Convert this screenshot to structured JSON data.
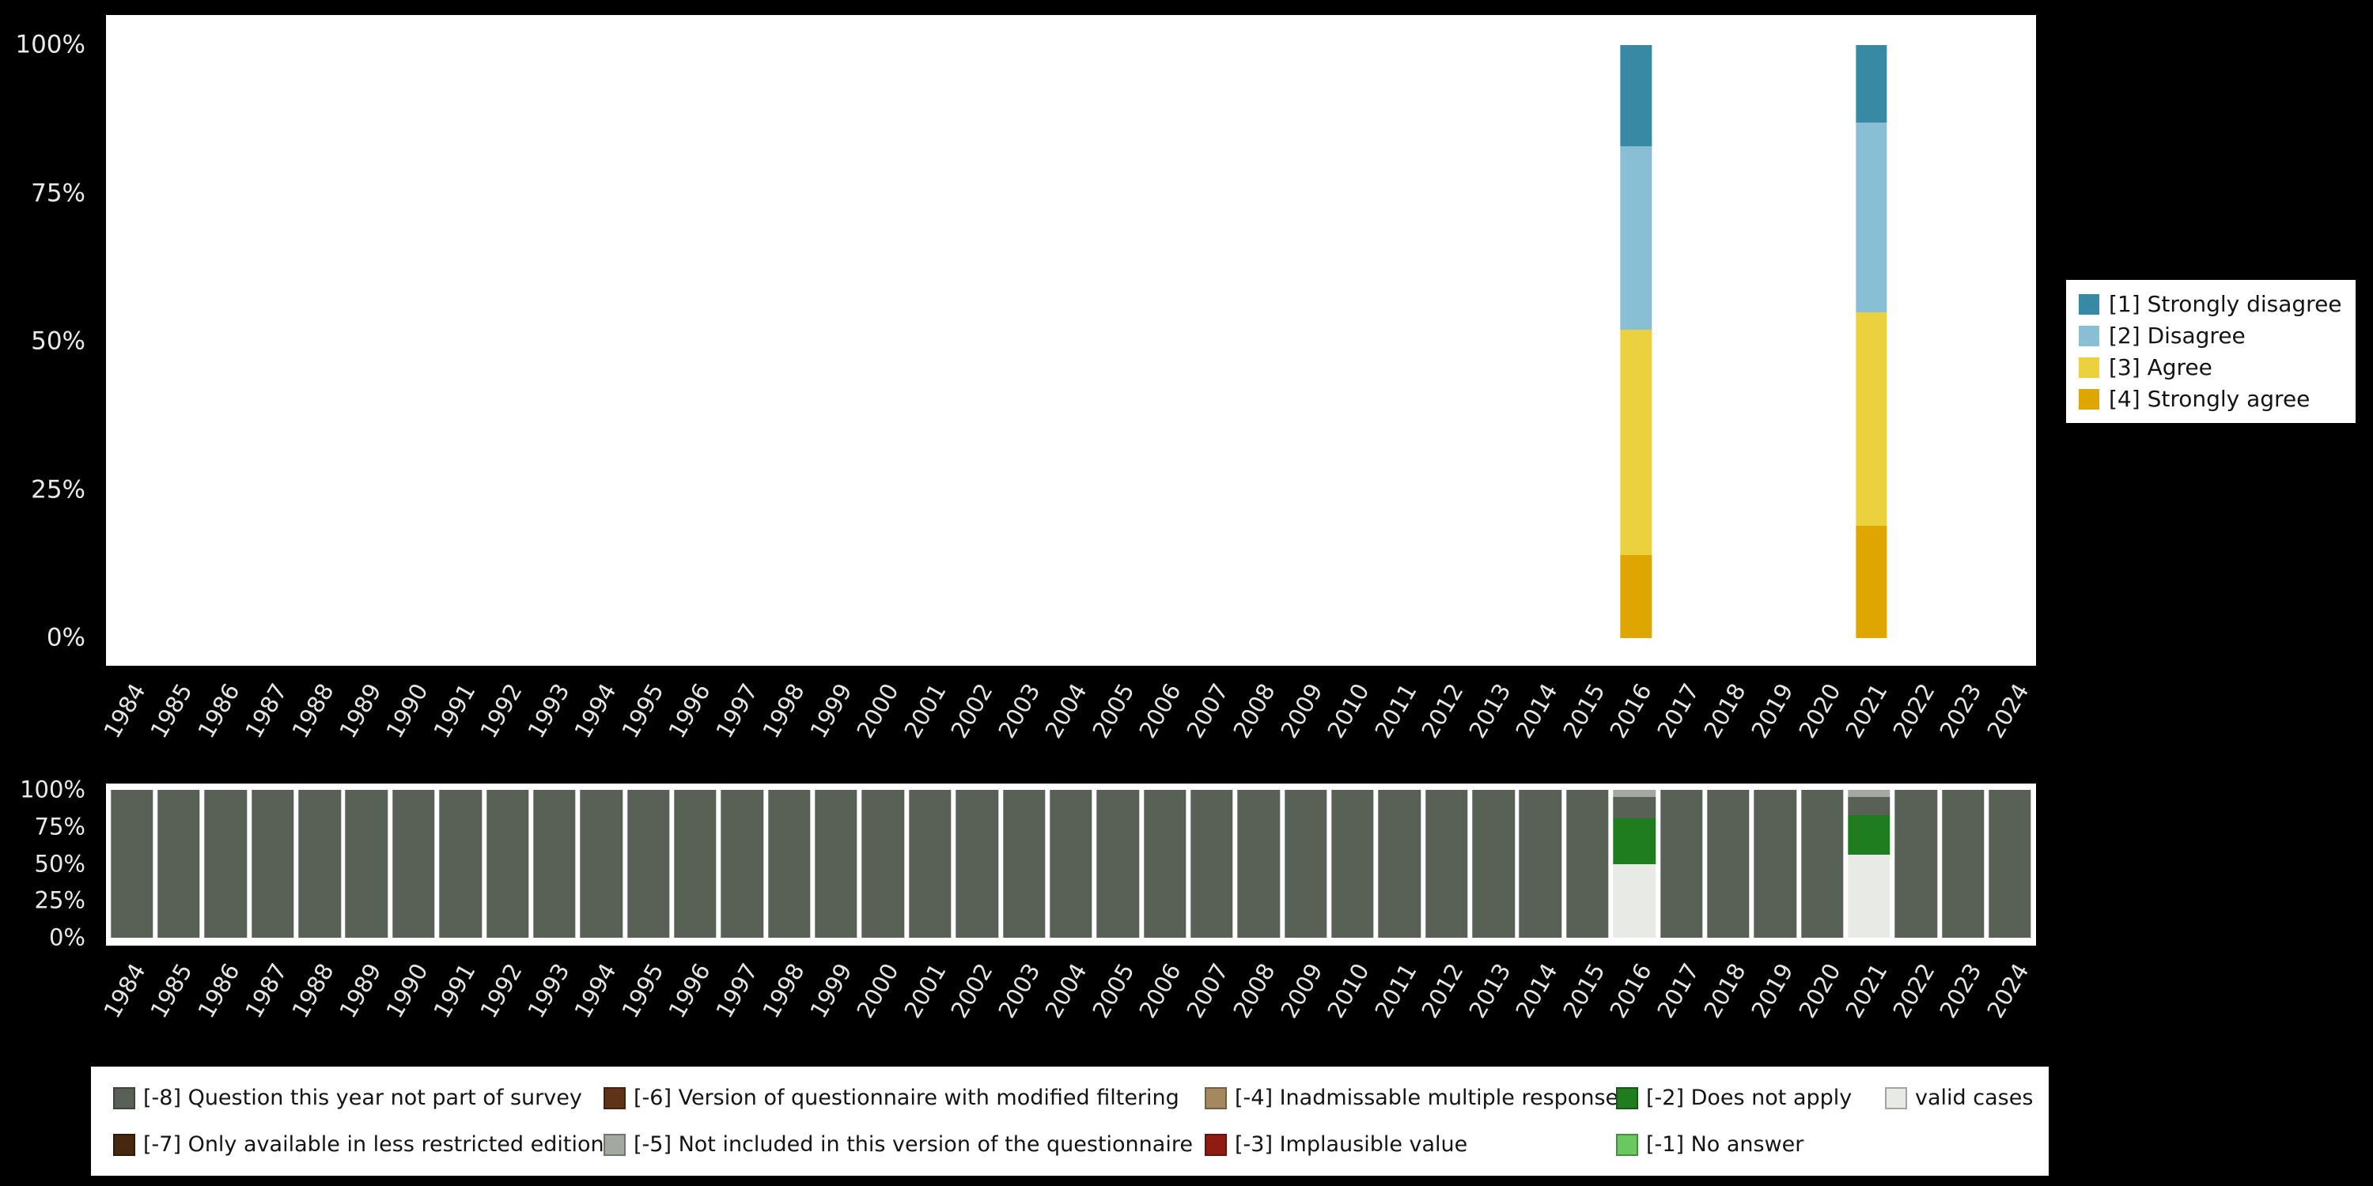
{
  "figure": {
    "background": "#000000",
    "panel_background": "#ffffff",
    "axis_text_color": "#e5e5e5"
  },
  "palette": {
    "1": "#3789a4",
    "2": "#88bfd4",
    "3": "#ecd13e",
    "4": "#dfa602",
    "-1": "#6ac861",
    "-2": "#1f7d1f",
    "-3": "#8e1c10",
    "-4": "#a5885d",
    "-5": "#a3a9a1",
    "-6": "#5f3317",
    "-7": "#45280e",
    "-8": "#596056",
    "valid": "#e8ebe5"
  },
  "y_ticks": [
    "0%",
    "25%",
    "50%",
    "75%",
    "100%"
  ],
  "chart_data": [
    {
      "type": "bar",
      "stacked": true,
      "title": "",
      "xlabel": "",
      "ylabel": "",
      "ylim": [
        0,
        100
      ],
      "unit": "percent",
      "grid": false,
      "legend_position": "right",
      "categories": [
        "1984",
        "1985",
        "1986",
        "1987",
        "1988",
        "1989",
        "1990",
        "1991",
        "1992",
        "1993",
        "1994",
        "1995",
        "1996",
        "1997",
        "1998",
        "1999",
        "2000",
        "2001",
        "2002",
        "2003",
        "2004",
        "2005",
        "2006",
        "2007",
        "2008",
        "2009",
        "2010",
        "2011",
        "2012",
        "2013",
        "2014",
        "2015",
        "2016",
        "2017",
        "2018",
        "2019",
        "2020",
        "2021",
        "2022",
        "2023",
        "2024"
      ],
      "series": [
        {
          "key": "4",
          "name": "[4] Strongly agree",
          "color": "#dfa602",
          "values_by_year": {
            "2016": 14,
            "2021": 19
          }
        },
        {
          "key": "3",
          "name": "[3] Agree",
          "color": "#ecd13e",
          "values_by_year": {
            "2016": 38,
            "2021": 36
          }
        },
        {
          "key": "2",
          "name": "[2] Disagree",
          "color": "#88bfd4",
          "values_by_year": {
            "2016": 31,
            "2021": 32
          }
        },
        {
          "key": "1",
          "name": "[1] Strongly disagree",
          "color": "#3789a4",
          "values_by_year": {
            "2016": 17,
            "2021": 13
          }
        }
      ],
      "year_stacks": {
        "2016": [
          {
            "key": "4",
            "pct": 14
          },
          {
            "key": "3",
            "pct": 38
          },
          {
            "key": "2",
            "pct": 31
          },
          {
            "key": "1",
            "pct": 17
          }
        ],
        "2021": [
          {
            "key": "4",
            "pct": 19
          },
          {
            "key": "3",
            "pct": 36
          },
          {
            "key": "2",
            "pct": 32
          },
          {
            "key": "1",
            "pct": 13
          }
        ]
      },
      "default_stack": []
    },
    {
      "type": "bar",
      "stacked": true,
      "title": "",
      "xlabel": "",
      "ylabel": "",
      "ylim": [
        0,
        100
      ],
      "unit": "percent",
      "grid": false,
      "legend_position": "bottom",
      "categories": [
        "1984",
        "1985",
        "1986",
        "1987",
        "1988",
        "1989",
        "1990",
        "1991",
        "1992",
        "1993",
        "1994",
        "1995",
        "1996",
        "1997",
        "1998",
        "1999",
        "2000",
        "2001",
        "2002",
        "2003",
        "2004",
        "2005",
        "2006",
        "2007",
        "2008",
        "2009",
        "2010",
        "2011",
        "2012",
        "2013",
        "2014",
        "2015",
        "2016",
        "2017",
        "2018",
        "2019",
        "2020",
        "2021",
        "2022",
        "2023",
        "2024"
      ],
      "series": [
        {
          "key": "valid",
          "name": "valid cases",
          "color": "#e8ebe5",
          "values_by_year": {
            "2016": 50,
            "2021": 56
          }
        },
        {
          "key": "-2",
          "name": "[-2] Does not apply",
          "color": "#1f7d1f",
          "values_by_year": {
            "2016": 31,
            "2021": 27
          }
        },
        {
          "key": "-8",
          "name": "[-8] Question this year not part of survey",
          "color": "#596056",
          "values_by_year": {
            "2016": 14,
            "2021": 12
          },
          "default_pct_other_years": 100
        },
        {
          "key": "-5",
          "name": "[-5] Not included in this version of the questionnaire",
          "color": "#a3a9a1",
          "values_by_year": {
            "2016": 5,
            "2021": 5
          }
        }
      ],
      "year_stacks": {
        "2016": [
          {
            "key": "valid",
            "pct": 50
          },
          {
            "key": "-2",
            "pct": 31
          },
          {
            "key": "-8",
            "pct": 14
          },
          {
            "key": "-5",
            "pct": 5
          }
        ],
        "2021": [
          {
            "key": "valid",
            "pct": 56
          },
          {
            "key": "-2",
            "pct": 27
          },
          {
            "key": "-8",
            "pct": 12
          },
          {
            "key": "-5",
            "pct": 5
          }
        ]
      },
      "default_stack": [
        {
          "key": "-8",
          "pct": 100
        }
      ]
    }
  ],
  "legend_side": {
    "entries": [
      {
        "key": "1",
        "label": "[1] Strongly disagree"
      },
      {
        "key": "2",
        "label": "[2] Disagree"
      },
      {
        "key": "3",
        "label": "[3] Agree"
      },
      {
        "key": "4",
        "label": "[4] Strongly agree"
      }
    ]
  },
  "legend_missing": {
    "entries": [
      {
        "key": "-8",
        "label": "[-8] Question this year not part of survey"
      },
      {
        "key": "-7",
        "label": "[-7] Only available in less restricted edition"
      },
      {
        "key": "-6",
        "label": "[-6] Version of questionnaire with modified filtering"
      },
      {
        "key": "-5",
        "label": "[-5] Not included in this version of the questionnaire"
      },
      {
        "key": "-4",
        "label": "[-4] Inadmissable multiple response"
      },
      {
        "key": "-3",
        "label": "[-3] Implausible value"
      },
      {
        "key": "-2",
        "label": "[-2] Does not apply"
      },
      {
        "key": "-1",
        "label": "[-1] No answer"
      },
      {
        "key": "valid",
        "label": "valid cases"
      }
    ]
  }
}
